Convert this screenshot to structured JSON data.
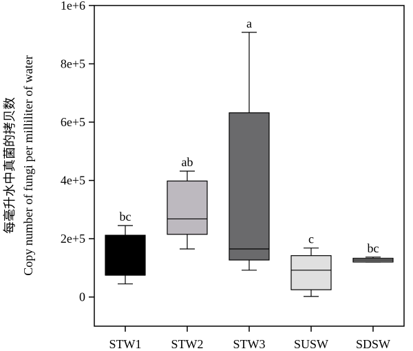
{
  "chart_data": {
    "type": "box",
    "title": "",
    "ylabel_cn": "每毫升水中真菌的拷贝数",
    "ylabel_en": "Copy number of fungi per milliliter of water",
    "xlabel": "",
    "ylim": [
      -100000,
      1000000
    ],
    "yticks": [
      0,
      200000,
      400000,
      600000,
      800000,
      1000000
    ],
    "ytick_labels": [
      "0",
      "2e+5",
      "4e+5",
      "6e+5",
      "8e+5",
      "1e+6"
    ],
    "grid": false,
    "categories": [
      "STW1",
      "STW2",
      "STW3",
      "SUSW",
      "SDSW"
    ],
    "boxes": [
      {
        "category": "STW1",
        "whisker_low": 45000,
        "q1": 75000,
        "median": 75000,
        "q3": 212000,
        "whisker_high": 245000,
        "fill": "#000000",
        "label": "bc"
      },
      {
        "category": "STW2",
        "whisker_low": 165000,
        "q1": 215000,
        "median": 268000,
        "q3": 398000,
        "whisker_high": 432000,
        "fill": "#bdb9bf",
        "label": "ab"
      },
      {
        "category": "STW3",
        "whisker_low": 92000,
        "q1": 127000,
        "median": 165000,
        "q3": 632000,
        "whisker_high": 908000,
        "fill": "#6a6a6c",
        "label": "a"
      },
      {
        "category": "SUSW",
        "whisker_low": 2000,
        "q1": 25000,
        "median": 92000,
        "q3": 142000,
        "whisker_high": 168000,
        "fill": "#e0e0e0",
        "label": "c"
      },
      {
        "category": "SDSW",
        "whisker_low": 120000,
        "q1": 120000,
        "median": 127000,
        "q3": 133000,
        "whisker_high": 137000,
        "fill": "#8c8c8c",
        "label": "bc"
      }
    ]
  }
}
